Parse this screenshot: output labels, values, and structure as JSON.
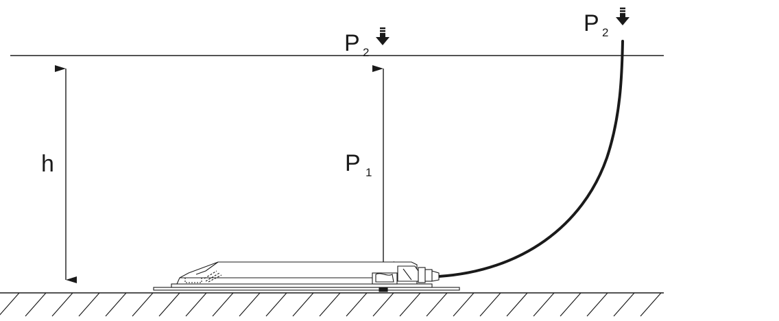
{
  "diagram": {
    "labels": {
      "height": "h",
      "p1_main": "P",
      "p1_sub": "1",
      "p2_main": "P",
      "p2_sub": "2"
    },
    "icons": {
      "pressure_arrow": "down-arrow-icon"
    },
    "colors": {
      "line": "#1a1a1a",
      "background": "#ffffff",
      "cable": "#1a1a1a"
    }
  }
}
